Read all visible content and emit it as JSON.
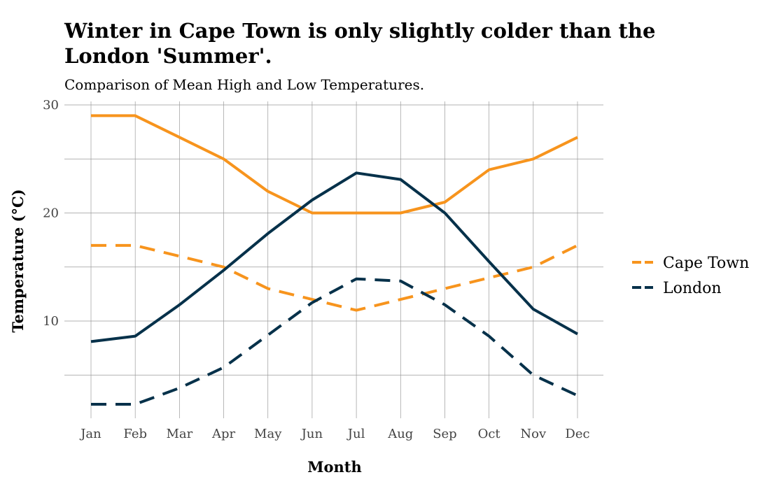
{
  "title_line1": "Winter in Cape Town is only slightly colder than the",
  "title_line2": "London 'Summer'.",
  "subtitle": "Comparison of Mean High and Low Temperatures.",
  "colors": {
    "cape_town": "#f7941d",
    "london": "#06314a",
    "grid": "#9a9a9a"
  },
  "chart_data": {
    "type": "line",
    "categories": [
      "Jan",
      "Feb",
      "Mar",
      "Apr",
      "May",
      "Jun",
      "Jul",
      "Aug",
      "Sep",
      "Oct",
      "Nov",
      "Dec"
    ],
    "xlabel": "Month",
    "ylabel": "Temperature (°C)",
    "ylim": [
      1.5,
      30.3
    ],
    "yticks": [
      10,
      20,
      30
    ],
    "grid": true,
    "legend_position": "right",
    "series": [
      {
        "name": "Cape Town",
        "measure": "high",
        "style": "solid",
        "color": "#f7941d",
        "values": [
          29,
          29,
          27,
          25,
          22,
          20,
          20,
          20,
          21,
          24,
          25,
          27
        ]
      },
      {
        "name": "Cape Town",
        "measure": "low",
        "style": "dashed",
        "color": "#f7941d",
        "values": [
          17,
          17,
          16,
          15,
          13,
          12,
          11,
          12,
          13,
          14,
          15,
          17
        ]
      },
      {
        "name": "London",
        "measure": "high",
        "style": "solid",
        "color": "#06314a",
        "values": [
          8.1,
          8.6,
          11.5,
          14.7,
          18.1,
          21.2,
          23.7,
          23.1,
          20.0,
          15.5,
          11.1,
          8.8
        ]
      },
      {
        "name": "London",
        "measure": "low",
        "style": "dashed",
        "color": "#06314a",
        "values": [
          2.3,
          2.3,
          3.8,
          5.7,
          8.7,
          11.7,
          13.9,
          13.7,
          11.5,
          8.6,
          5.0,
          3.1
        ]
      }
    ],
    "legend": [
      {
        "label": "Cape Town",
        "color": "#f7941d"
      },
      {
        "label": "London",
        "color": "#06314a"
      }
    ]
  }
}
